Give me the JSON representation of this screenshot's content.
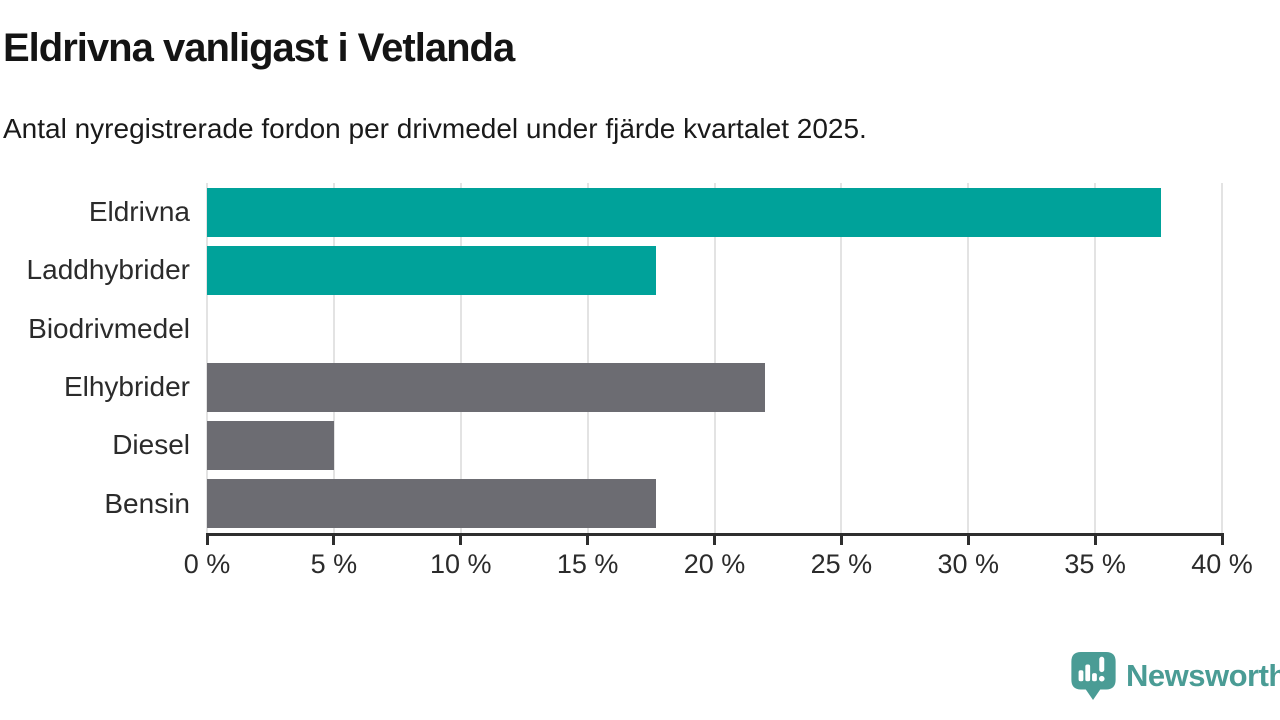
{
  "chart_data": {
    "type": "bar",
    "orientation": "horizontal",
    "title": "Eldrivna vanligast i Vetlanda",
    "subtitle": "Antal nyregistrerade fordon per drivmedel under fjärde kvartalet 2025.",
    "categories": [
      "Eldrivna",
      "Laddhybrider",
      "Biodrivmedel",
      "Elhybrider",
      "Diesel",
      "Bensin"
    ],
    "values": [
      37.6,
      17.7,
      0,
      22.0,
      5.0,
      17.7
    ],
    "unit": "%",
    "bar_colors": [
      "#00a29a",
      "#00a29a",
      "#6c6c72",
      "#6c6c72",
      "#6c6c72",
      "#6c6c72"
    ],
    "highlight_color": "#00a29a",
    "default_color": "#6c6c72",
    "xlim": [
      0,
      40
    ],
    "x_ticks": [
      0,
      5,
      10,
      15,
      20,
      25,
      30,
      35,
      40
    ],
    "x_tick_labels": [
      "0 %",
      "5 %",
      "10 %",
      "15 %",
      "20 %",
      "25 %",
      "30 %",
      "35 %",
      "40 %"
    ],
    "grid": true,
    "gridline_color": "#e3e3e3",
    "axis_color": "#2e2e2e",
    "legend": "none"
  },
  "branding": {
    "logo_text": "Newsworthy",
    "logo_color": "#4a9c95",
    "logo_icon": "speech-bubble-bar-chart-exclamation"
  }
}
